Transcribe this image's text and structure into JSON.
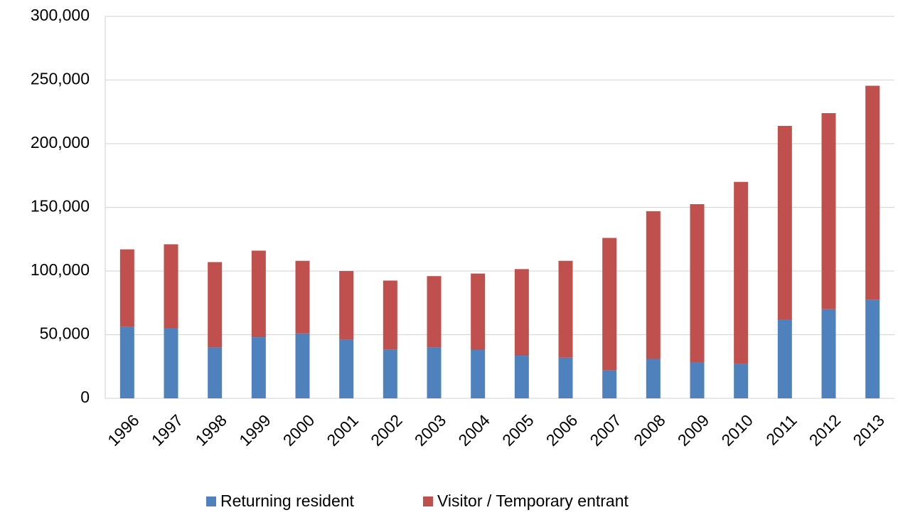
{
  "chart_data": {
    "type": "stacked_bar",
    "categories": [
      "1996",
      "1997",
      "1998",
      "1999",
      "2000",
      "2001",
      "2002",
      "2003",
      "2004",
      "2005",
      "2006",
      "2007",
      "2008",
      "2009",
      "2010",
      "2011",
      "2012",
      "2013"
    ],
    "series": [
      {
        "name": "Returning resident",
        "color": "#4f81bd",
        "values": [
          56000,
          55000,
          40000,
          48000,
          51000,
          46000,
          38500,
          40000,
          38000,
          33500,
          32000,
          22000,
          31000,
          28500,
          27000,
          62000,
          70000,
          77500
        ]
      },
      {
        "name": "Visitor / Temporary entrant",
        "color": "#c0504d",
        "values": [
          61000,
          66000,
          67000,
          68000,
          57000,
          54000,
          54000,
          56000,
          60000,
          68000,
          76000,
          104000,
          116000,
          124000,
          143000,
          152000,
          154000,
          168000
        ]
      }
    ],
    "ylim": [
      0,
      300000
    ],
    "yticks": [
      0,
      {
        "value": 50000,
        "label": "50,000"
      },
      {
        "value": 100000,
        "label": "100,000"
      },
      {
        "value": 150000,
        "label": "150,000"
      },
      {
        "value": 200000,
        "label": "200,000"
      },
      {
        "value": 250000,
        "label": "250,000"
      },
      {
        "value": 300000,
        "label": "300,000"
      }
    ],
    "grid": true,
    "legend": "bottom"
  }
}
